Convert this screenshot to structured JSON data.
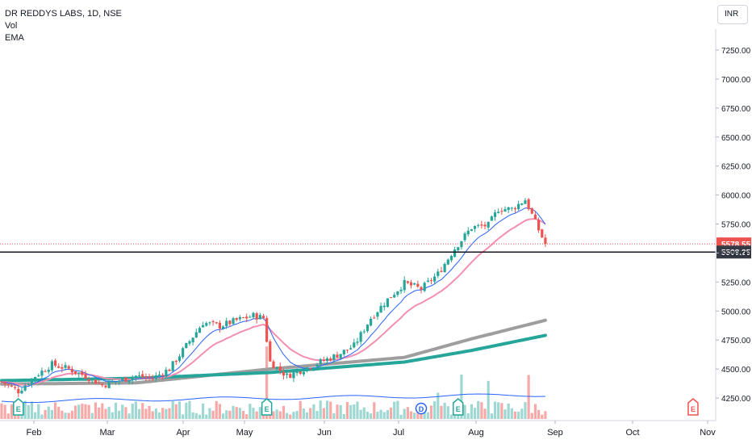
{
  "header": {
    "symbol": "DR REDDYS LABS, 1D, NSE",
    "indicator_vol": "Vol",
    "indicator_ema": "EMA",
    "currency": "INR"
  },
  "colors": {
    "up": "#26a69a",
    "down": "#ef5350",
    "vol_up": "#9fd8d2",
    "vol_down": "#f7a9a7",
    "ema_fast": "#2962ff",
    "ema_mid": "#f48fb1",
    "ema_slow": "#26a69a",
    "ema_long": "#9e9e9e",
    "vol_ma": "#2962ff",
    "last_price": "#ef5350",
    "hline": "#131722"
  },
  "chart_data": {
    "type": "candlestick",
    "x_labels": [
      "Feb",
      "Mar",
      "Apr",
      "May",
      "Jun",
      "Jul",
      "Aug",
      "Sep",
      "Oct",
      "Nov"
    ],
    "y_ticks": [
      "7250.00",
      "7000.00",
      "6750.00",
      "6500.00",
      "6250.00",
      "6000.00",
      "5750.00",
      "5500.00",
      "5250.00",
      "5000.00",
      "4750.00",
      "4500.00",
      "4250.00"
    ],
    "ylim": [
      4080,
      7450
    ],
    "last_price": "5578.55",
    "horizontal_line": "5508.25",
    "events": [
      {
        "label": "E",
        "day": 5
      },
      {
        "label": "E",
        "day": 79
      },
      {
        "label": "D",
        "day": 125
      },
      {
        "label": "E",
        "day": 136
      },
      {
        "label": "E",
        "day": 206
      }
    ],
    "anchors": [
      [
        0,
        4390
      ],
      [
        5,
        4310
      ],
      [
        10,
        4440
      ],
      [
        15,
        4540
      ],
      [
        20,
        4500
      ],
      [
        25,
        4440
      ],
      [
        30,
        4360
      ],
      [
        35,
        4400
      ],
      [
        40,
        4440
      ],
      [
        45,
        4420
      ],
      [
        50,
        4500
      ],
      [
        55,
        4700
      ],
      [
        60,
        4900
      ],
      [
        65,
        4870
      ],
      [
        70,
        4920
      ],
      [
        75,
        4960
      ],
      [
        78,
        4940
      ],
      [
        80,
        4560
      ],
      [
        85,
        4440
      ],
      [
        90,
        4500
      ],
      [
        95,
        4560
      ],
      [
        100,
        4620
      ],
      [
        105,
        4700
      ],
      [
        110,
        4940
      ],
      [
        115,
        5100
      ],
      [
        120,
        5240
      ],
      [
        125,
        5190
      ],
      [
        130,
        5320
      ],
      [
        135,
        5540
      ],
      [
        140,
        5720
      ],
      [
        145,
        5740
      ],
      [
        148,
        5880
      ],
      [
        152,
        5880
      ],
      [
        156,
        5960
      ],
      [
        158,
        5830
      ],
      [
        160,
        5700
      ],
      [
        162,
        5578
      ]
    ],
    "ema_slow": [
      [
        0,
        4400
      ],
      [
        40,
        4420
      ],
      [
        80,
        4470
      ],
      [
        120,
        4560
      ],
      [
        140,
        4660
      ],
      [
        162,
        4790
      ]
    ],
    "ema_long": [
      [
        0,
        4370
      ],
      [
        40,
        4380
      ],
      [
        80,
        4500
      ],
      [
        120,
        4600
      ],
      [
        140,
        4760
      ],
      [
        162,
        4920
      ]
    ],
    "volume": {
      "spikes": [
        [
          79,
          3.2
        ],
        [
          130,
          2.6
        ],
        [
          137,
          3.0
        ],
        [
          145,
          4.0
        ],
        [
          157,
          1.8
        ]
      ]
    }
  }
}
